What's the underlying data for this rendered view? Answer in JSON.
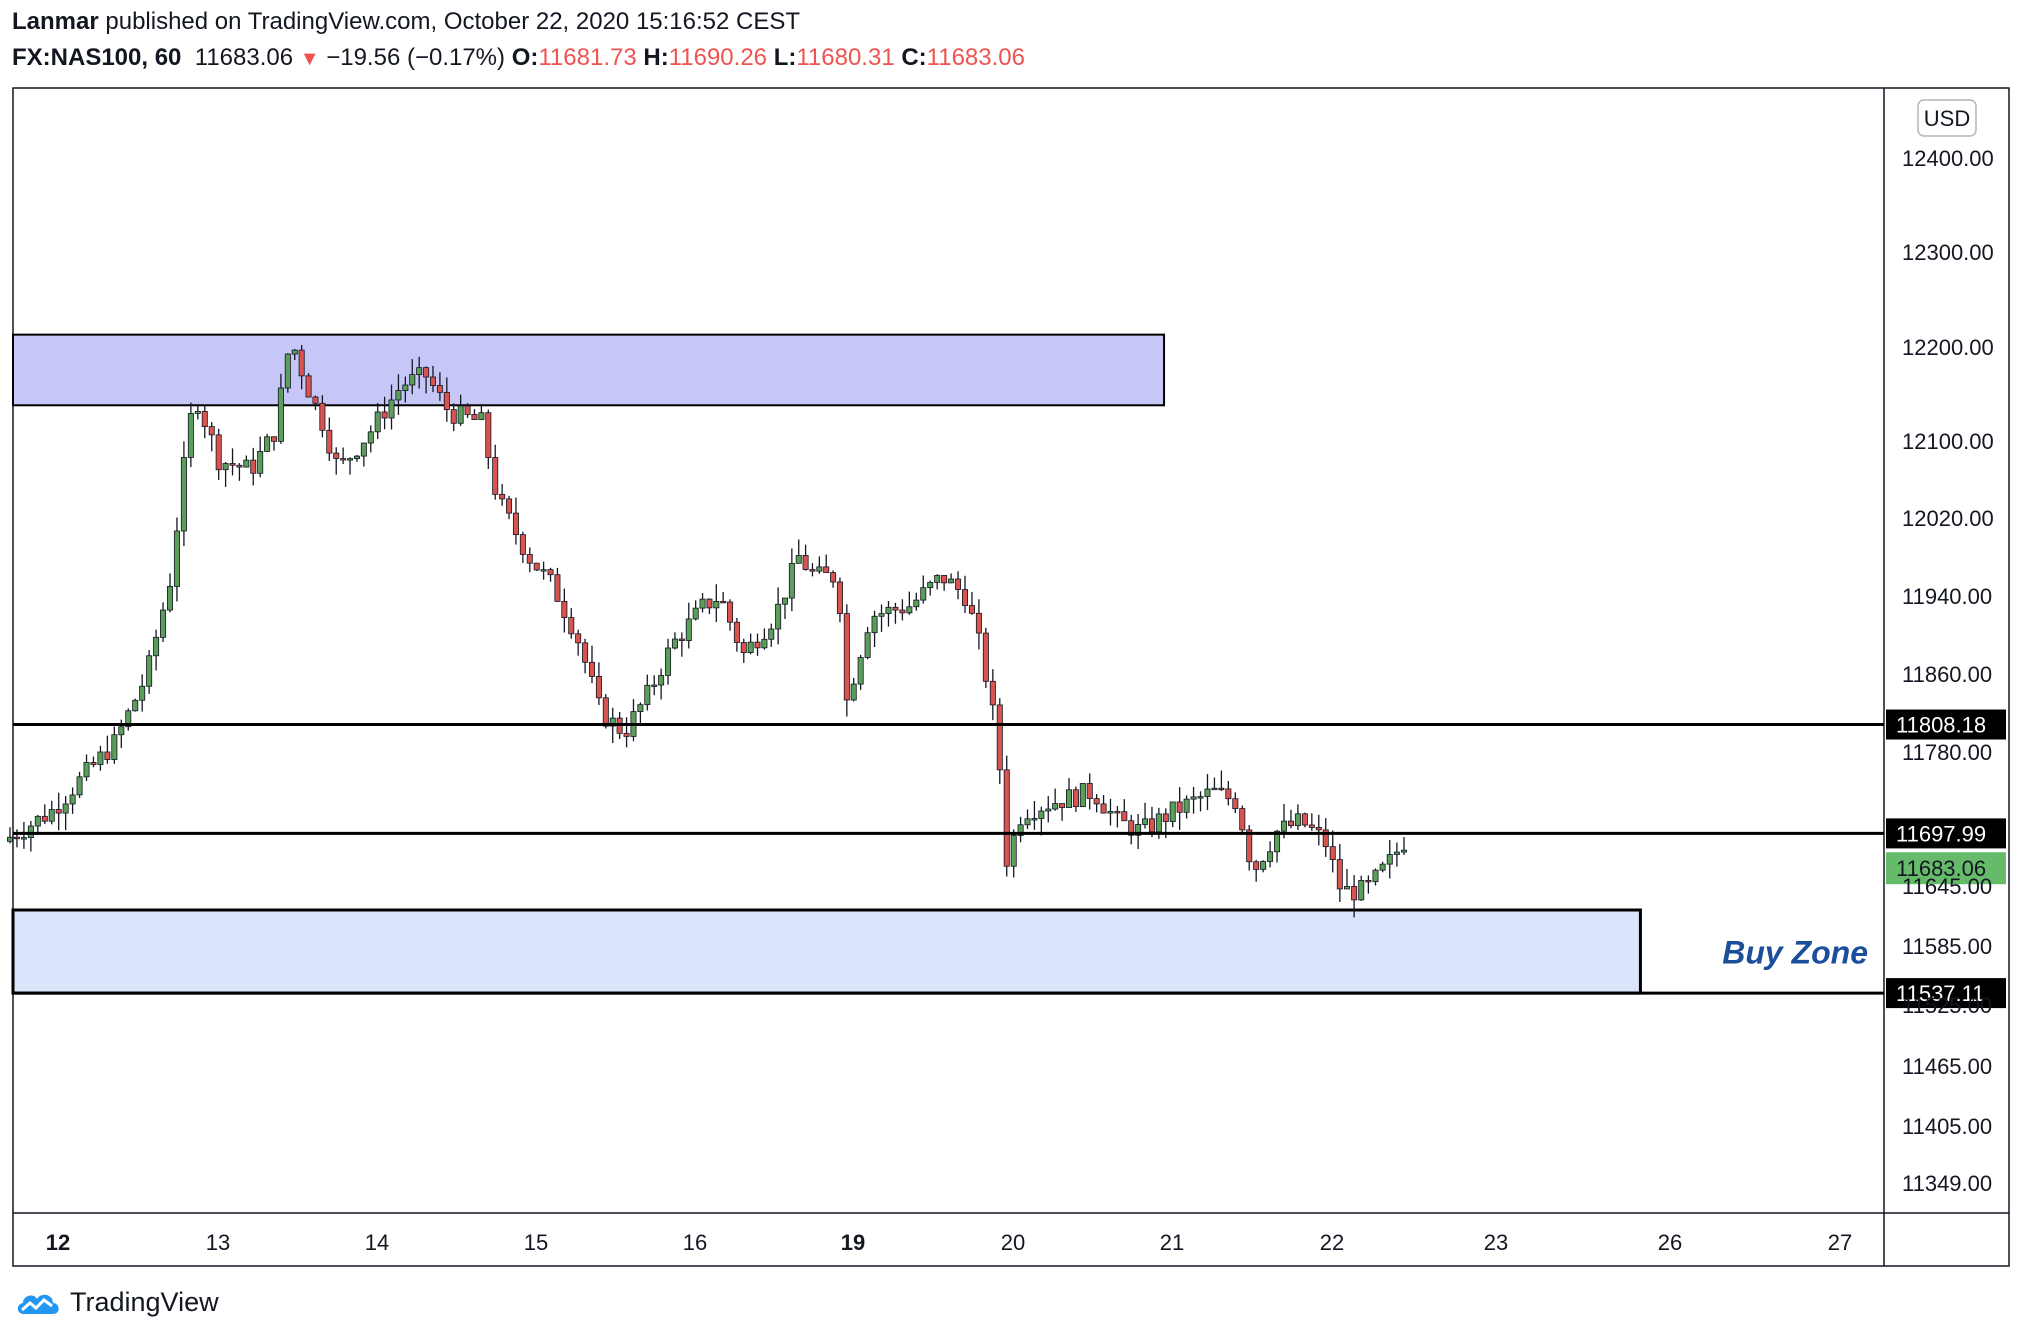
{
  "header": {
    "author": "Lanmar",
    "published": "published on TradingView.com, October 22, 2020 15:16:52 CEST",
    "symbol": "FX:NAS100, 60",
    "price": "11683.06",
    "change": "−19.56 (−0.17%)",
    "o_label": "O:",
    "o_value": "11681.73",
    "h_label": "H:",
    "h_value": "11690.26",
    "l_label": "L:",
    "l_value": "11680.31",
    "c_label": "C:",
    "c_value": "11683.06"
  },
  "footer": {
    "brand": "TradingView"
  },
  "colors": {
    "up": "#26a69a",
    "down": "#ef5350",
    "up_fill": "#5a9e5a",
    "down_fill": "#d9534f",
    "resistance_zone": "#c6c6f7",
    "buy_zone": "#dae5fb"
  },
  "chart_data": {
    "type": "candlestick",
    "currency": "USD",
    "ylim": [
      11300,
      12480
    ],
    "y_ticks": [
      "12400.00",
      "12300.00",
      "12200.00",
      "12100.00",
      "12020.00",
      "11940.00",
      "11860.00",
      "11780.00",
      "11645.00",
      "11585.00",
      "11525.00",
      "11465.00",
      "11405.00",
      "11349.00"
    ],
    "y_tick_values": [
      12400,
      12300,
      12200,
      12100,
      12020,
      11940,
      11860,
      11780,
      11645,
      11585,
      11525,
      11465,
      11405,
      11349
    ],
    "x_ticks": [
      {
        "label": "12",
        "day": 12,
        "bold": true
      },
      {
        "label": "13",
        "day": 13
      },
      {
        "label": "14",
        "day": 14
      },
      {
        "label": "15",
        "day": 15
      },
      {
        "label": "16",
        "day": 16
      },
      {
        "label": "19",
        "day": 17,
        "bold": true
      },
      {
        "label": "20",
        "day": 18
      },
      {
        "label": "21",
        "day": 19
      },
      {
        "label": "22",
        "day": 20
      },
      {
        "label": "23",
        "day": 21
      },
      {
        "label": "26",
        "day": 22
      },
      {
        "label": "27",
        "day": 23
      }
    ],
    "horizontal_lines": [
      {
        "value": 11808.18,
        "label": "11808.18"
      },
      {
        "value": 11697.99,
        "label": "11697.99"
      },
      {
        "value": 11537.11,
        "label": "11537.11"
      }
    ],
    "last_price": {
      "value": 11683.06,
      "label": "11683.06"
    },
    "zones": [
      {
        "name": "resistance",
        "from": 12138,
        "to": 12213,
        "x_end_day": 18.95
      },
      {
        "name": "buy",
        "label": "Buy Zone",
        "from": 11537.11,
        "to": 11621,
        "x_end_day": 21.83
      }
    ],
    "anchors": [
      [
        11.7,
        11690
      ],
      [
        12.0,
        11720
      ],
      [
        12.4,
        11790
      ],
      [
        12.6,
        11860
      ],
      [
        12.75,
        11960
      ],
      [
        12.85,
        12100
      ],
      [
        12.9,
        12150
      ],
      [
        13.05,
        12080
      ],
      [
        13.25,
        12070
      ],
      [
        13.4,
        12110
      ],
      [
        13.5,
        12210
      ],
      [
        13.6,
        12160
      ],
      [
        13.7,
        12120
      ],
      [
        13.8,
        12070
      ],
      [
        14.0,
        12110
      ],
      [
        14.2,
        12160
      ],
      [
        14.35,
        12170
      ],
      [
        14.5,
        12130
      ],
      [
        14.7,
        12120
      ],
      [
        14.8,
        12040
      ],
      [
        15.0,
        11980
      ],
      [
        15.15,
        11950
      ],
      [
        15.3,
        11900
      ],
      [
        15.45,
        11820
      ],
      [
        15.6,
        11800
      ],
      [
        15.75,
        11840
      ],
      [
        15.9,
        11890
      ],
      [
        16.1,
        11930
      ],
      [
        16.2,
        11940
      ],
      [
        16.35,
        11880
      ],
      [
        16.55,
        11920
      ],
      [
        16.7,
        11980
      ],
      [
        16.8,
        11960
      ],
      [
        16.95,
        11960
      ],
      [
        17.0,
        11830
      ],
      [
        17.15,
        11920
      ],
      [
        17.4,
        11930
      ],
      [
        17.6,
        11960
      ],
      [
        17.75,
        11940
      ],
      [
        17.85,
        11880
      ],
      [
        17.95,
        11790
      ],
      [
        18.0,
        11670
      ],
      [
        18.1,
        11720
      ],
      [
        18.3,
        11730
      ],
      [
        18.55,
        11740
      ],
      [
        18.7,
        11710
      ],
      [
        18.85,
        11700
      ],
      [
        19.05,
        11720
      ],
      [
        19.3,
        11740
      ],
      [
        19.45,
        11730
      ],
      [
        19.55,
        11660
      ],
      [
        19.7,
        11700
      ],
      [
        19.85,
        11710
      ],
      [
        20.0,
        11690
      ],
      [
        20.1,
        11640
      ],
      [
        20.25,
        11640
      ],
      [
        20.4,
        11670
      ],
      [
        20.48,
        11690
      ]
    ]
  }
}
